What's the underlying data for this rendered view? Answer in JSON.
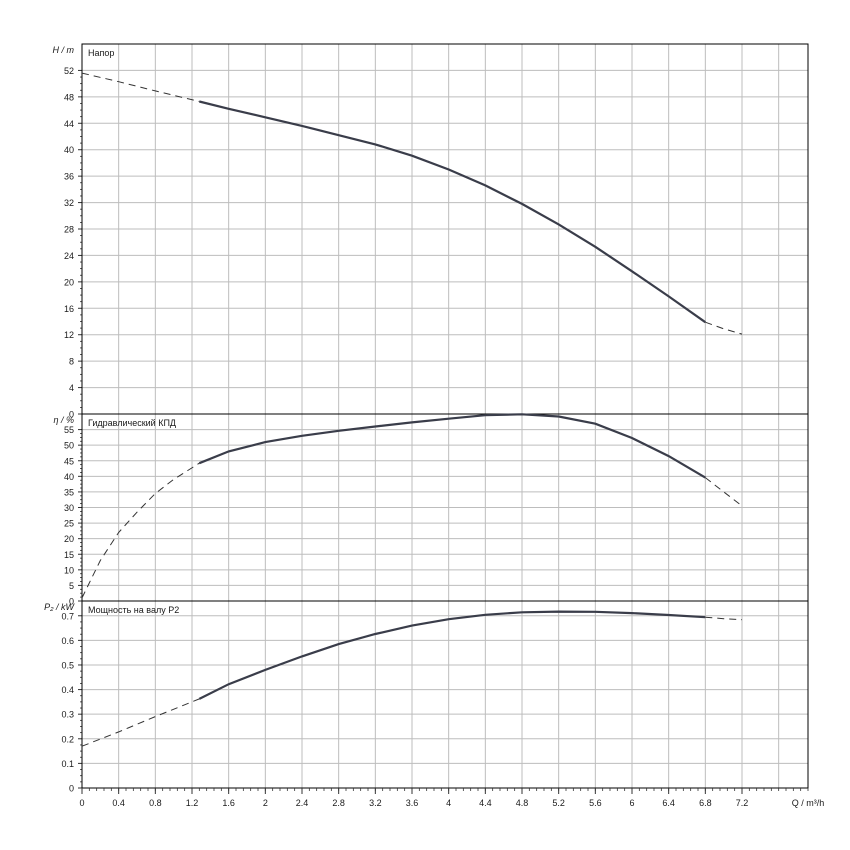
{
  "chart_data": [
    {
      "type": "line",
      "title": "Напор",
      "ylabel": "H / m",
      "ylim": [
        0,
        56
      ],
      "yticks": [
        0,
        4,
        8,
        12,
        16,
        20,
        24,
        28,
        32,
        36,
        40,
        44,
        48,
        52
      ],
      "grid": true,
      "series": [
        {
          "name": "solid",
          "style": "solid",
          "x": [
            1.28,
            1.6,
            2.0,
            2.4,
            2.8,
            3.2,
            3.6,
            4.0,
            4.4,
            4.8,
            5.2,
            5.6,
            6.0,
            6.4,
            6.8
          ],
          "y": [
            47.3,
            46.2,
            44.9,
            43.6,
            42.2,
            40.8,
            39.1,
            37.0,
            34.6,
            31.8,
            28.7,
            25.3,
            21.6,
            17.8,
            13.9
          ]
        },
        {
          "name": "dashed-start",
          "style": "dashed",
          "x": [
            0.0,
            0.4,
            0.8,
            1.28
          ],
          "y": [
            51.6,
            50.3,
            48.9,
            47.3
          ]
        },
        {
          "name": "dashed-end",
          "style": "dashed",
          "x": [
            6.8,
            7.0,
            7.2
          ],
          "y": [
            13.9,
            12.9,
            12.1
          ]
        }
      ]
    },
    {
      "type": "line",
      "title": "Гидравлический КПД",
      "ylabel": "η / %",
      "ylim": [
        0,
        60
      ],
      "yticks": [
        0,
        5,
        10,
        15,
        20,
        25,
        30,
        35,
        40,
        45,
        50,
        55
      ],
      "grid": true,
      "series": [
        {
          "name": "solid",
          "style": "solid",
          "x": [
            1.28,
            1.6,
            2.0,
            2.4,
            2.8,
            3.2,
            3.6,
            4.0,
            4.4,
            4.8,
            5.2,
            5.6,
            6.0,
            6.4,
            6.8
          ],
          "y": [
            44.2,
            48.0,
            51.0,
            53.0,
            54.6,
            56.0,
            57.3,
            58.5,
            59.6,
            59.9,
            59.2,
            56.9,
            52.3,
            46.5,
            39.6
          ]
        },
        {
          "name": "dashed-start",
          "style": "dashed",
          "x": [
            0.0,
            0.2,
            0.4,
            0.6,
            0.8,
            1.0,
            1.28
          ],
          "y": [
            1.0,
            13.0,
            22.0,
            28.5,
            34.5,
            39.0,
            44.2
          ]
        },
        {
          "name": "dashed-end",
          "style": "dashed",
          "x": [
            6.8,
            7.0,
            7.2
          ],
          "y": [
            39.6,
            35.0,
            30.5
          ]
        }
      ]
    },
    {
      "type": "line",
      "title": "Мощность на валу P2",
      "ylabel": "P₂ / kW",
      "ylim": [
        0,
        0.76
      ],
      "yticks": [
        "0",
        "0.1",
        "0.2",
        "0.3",
        "0.4",
        "0.5",
        "0.6",
        "0.7"
      ],
      "grid": true,
      "series": [
        {
          "name": "solid",
          "style": "solid",
          "x": [
            1.28,
            1.6,
            2.0,
            2.4,
            2.8,
            3.2,
            3.6,
            4.0,
            4.4,
            4.8,
            5.2,
            5.6,
            6.0,
            6.4,
            6.8
          ],
          "y": [
            0.362,
            0.422,
            0.48,
            0.535,
            0.585,
            0.626,
            0.66,
            0.686,
            0.704,
            0.714,
            0.717,
            0.716,
            0.711,
            0.703,
            0.694
          ]
        },
        {
          "name": "dashed-start",
          "style": "dashed",
          "x": [
            0.0,
            0.4,
            0.8,
            1.28
          ],
          "y": [
            0.17,
            0.228,
            0.29,
            0.362
          ]
        },
        {
          "name": "dashed-end",
          "style": "dashed",
          "x": [
            6.8,
            7.0,
            7.2
          ],
          "y": [
            0.694,
            0.688,
            0.684
          ]
        }
      ]
    }
  ],
  "x_axis": {
    "label": "Q / m³/h",
    "xlim": [
      0,
      7.92
    ],
    "ticks": [
      "0",
      "0.4",
      "0.8",
      "1.2",
      "1.6",
      "2",
      "2.4",
      "2.8",
      "3.2",
      "3.6",
      "4",
      "4.4",
      "4.8",
      "5.2",
      "5.6",
      "6",
      "6.4",
      "6.8",
      "7.2"
    ]
  }
}
